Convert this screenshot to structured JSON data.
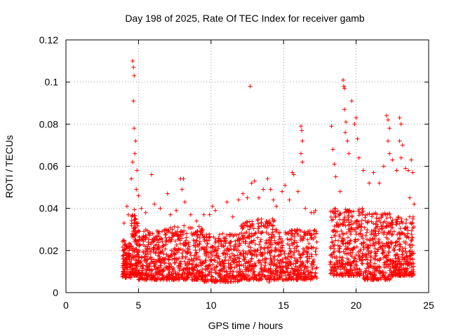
{
  "chart_data": {
    "type": "scatter",
    "title": "Day 198 of 2025, Rate Of TEC Index for receiver gamb",
    "xlabel": "GPS time / hours",
    "ylabel": "ROTI / TECUs",
    "xlim": [
      0,
      25
    ],
    "ylim": [
      0,
      0.12
    ],
    "x_ticks": [
      0,
      5,
      10,
      15,
      20,
      25
    ],
    "x_tick_labels": [
      "0",
      "5",
      "10",
      "15",
      "20",
      "25"
    ],
    "y_ticks": [
      0,
      0.02,
      0.04,
      0.06,
      0.08,
      0.1,
      0.12
    ],
    "y_tick_labels": [
      "0",
      "0.02",
      "0.04",
      "0.06",
      "0.08",
      "0.1",
      "0.12"
    ],
    "grid": true,
    "marker": "plus",
    "color": "#ff0000",
    "series": [
      {
        "name": "ROTI",
        "points": [
          [
            4.6,
            0.11
          ],
          [
            4.65,
            0.107
          ],
          [
            4.7,
            0.103
          ],
          [
            4.65,
            0.091
          ],
          [
            4.7,
            0.078
          ],
          [
            4.8,
            0.072
          ],
          [
            4.75,
            0.066
          ],
          [
            4.6,
            0.062
          ],
          [
            4.9,
            0.058
          ],
          [
            4.5,
            0.054
          ],
          [
            4.2,
            0.041
          ],
          [
            4.0,
            0.033
          ],
          [
            4.3,
            0.037
          ],
          [
            4.85,
            0.049
          ],
          [
            5.0,
            0.046
          ],
          [
            5.2,
            0.04
          ],
          [
            5.5,
            0.038
          ],
          [
            5.9,
            0.056
          ],
          [
            6.1,
            0.042
          ],
          [
            6.5,
            0.04
          ],
          [
            7.0,
            0.047
          ],
          [
            7.2,
            0.037
          ],
          [
            7.6,
            0.039
          ],
          [
            7.9,
            0.054
          ],
          [
            8.1,
            0.054
          ],
          [
            8.0,
            0.049
          ],
          [
            8.2,
            0.043
          ],
          [
            8.6,
            0.037
          ],
          [
            9.0,
            0.034
          ],
          [
            9.5,
            0.037
          ],
          [
            9.9,
            0.037
          ],
          [
            10.1,
            0.041
          ],
          [
            10.3,
            0.039
          ],
          [
            10.8,
            0.028
          ],
          [
            11.1,
            0.043
          ],
          [
            11.5,
            0.036
          ],
          [
            11.9,
            0.044
          ],
          [
            12.2,
            0.047
          ],
          [
            12.5,
            0.045
          ],
          [
            12.7,
            0.098
          ],
          [
            12.8,
            0.052
          ],
          [
            13.0,
            0.053
          ],
          [
            13.3,
            0.045
          ],
          [
            13.6,
            0.049
          ],
          [
            13.9,
            0.054
          ],
          [
            14.1,
            0.049
          ],
          [
            14.3,
            0.044
          ],
          [
            14.5,
            0.041
          ],
          [
            14.9,
            0.048
          ],
          [
            15.1,
            0.051
          ],
          [
            15.4,
            0.044
          ],
          [
            15.6,
            0.057
          ],
          [
            15.7,
            0.056
          ],
          [
            16.0,
            0.048
          ],
          [
            16.2,
            0.079
          ],
          [
            16.25,
            0.077
          ],
          [
            16.3,
            0.072
          ],
          [
            16.2,
            0.066
          ],
          [
            16.3,
            0.062
          ],
          [
            16.5,
            0.04
          ],
          [
            16.9,
            0.038
          ],
          [
            17.1,
            0.038
          ],
          [
            17.2,
            0.039
          ],
          [
            18.3,
            0.079
          ],
          [
            18.4,
            0.068
          ],
          [
            18.5,
            0.061
          ],
          [
            18.6,
            0.055
          ],
          [
            18.9,
            0.048
          ],
          [
            19.1,
            0.101
          ],
          [
            19.15,
            0.098
          ],
          [
            19.2,
            0.097
          ],
          [
            19.2,
            0.087
          ],
          [
            19.3,
            0.081
          ],
          [
            19.25,
            0.076
          ],
          [
            19.4,
            0.072
          ],
          [
            19.5,
            0.066
          ],
          [
            19.7,
            0.091
          ],
          [
            19.9,
            0.08
          ],
          [
            20.0,
            0.083
          ],
          [
            20.1,
            0.073
          ],
          [
            20.2,
            0.064
          ],
          [
            20.5,
            0.058
          ],
          [
            20.9,
            0.052
          ],
          [
            21.2,
            0.057
          ],
          [
            21.6,
            0.052
          ],
          [
            21.9,
            0.06
          ],
          [
            22.1,
            0.084
          ],
          [
            22.2,
            0.082
          ],
          [
            22.3,
            0.078
          ],
          [
            22.2,
            0.072
          ],
          [
            22.3,
            0.066
          ],
          [
            22.5,
            0.063
          ],
          [
            22.8,
            0.058
          ],
          [
            23.0,
            0.083
          ],
          [
            23.1,
            0.08
          ],
          [
            23.0,
            0.072
          ],
          [
            23.2,
            0.07
          ],
          [
            23.1,
            0.064
          ],
          [
            23.4,
            0.059
          ],
          [
            23.6,
            0.058
          ],
          [
            23.8,
            0.063
          ],
          [
            23.9,
            0.057
          ],
          [
            23.7,
            0.045
          ],
          [
            24.0,
            0.042
          ],
          [
            23.2,
            0.009
          ],
          [
            22.0,
            0.006
          ],
          [
            21.0,
            0.007
          ],
          [
            20.0,
            0.008
          ],
          [
            19.0,
            0.009
          ],
          [
            18.5,
            0.01
          ],
          [
            17.2,
            0.009
          ],
          [
            16.0,
            0.007
          ],
          [
            15.0,
            0.006
          ],
          [
            14.0,
            0.005
          ],
          [
            13.0,
            0.007
          ],
          [
            12.0,
            0.006
          ],
          [
            11.0,
            0.005
          ],
          [
            10.0,
            0.006
          ],
          [
            9.0,
            0.007
          ],
          [
            8.0,
            0.008
          ],
          [
            7.0,
            0.007
          ],
          [
            6.0,
            0.008
          ],
          [
            5.0,
            0.009
          ],
          [
            4.0,
            0.01
          ]
        ],
        "clusters": [
          {
            "x_range": [
              3.9,
              4.5
            ],
            "y_range": [
              0.007,
              0.025
            ],
            "count": 120
          },
          {
            "x_range": [
              4.5,
              5.0
            ],
            "y_range": [
              0.008,
              0.04
            ],
            "count": 120
          },
          {
            "x_range": [
              5.0,
              7.0
            ],
            "y_range": [
              0.006,
              0.03
            ],
            "count": 300
          },
          {
            "x_range": [
              7.0,
              9.5
            ],
            "y_range": [
              0.006,
              0.032
            ],
            "count": 340
          },
          {
            "x_range": [
              9.5,
              12.0
            ],
            "y_range": [
              0.005,
              0.028
            ],
            "count": 320
          },
          {
            "x_range": [
              12.0,
              14.5
            ],
            "y_range": [
              0.006,
              0.035
            ],
            "count": 340
          },
          {
            "x_range": [
              14.5,
              17.3
            ],
            "y_range": [
              0.006,
              0.03
            ],
            "count": 340
          },
          {
            "x_range": [
              18.2,
              20.5
            ],
            "y_range": [
              0.008,
              0.04
            ],
            "count": 340
          },
          {
            "x_range": [
              20.5,
              22.5
            ],
            "y_range": [
              0.006,
              0.038
            ],
            "count": 300
          },
          {
            "x_range": [
              22.5,
              24.0
            ],
            "y_range": [
              0.008,
              0.036
            ],
            "count": 240
          }
        ]
      }
    ]
  }
}
